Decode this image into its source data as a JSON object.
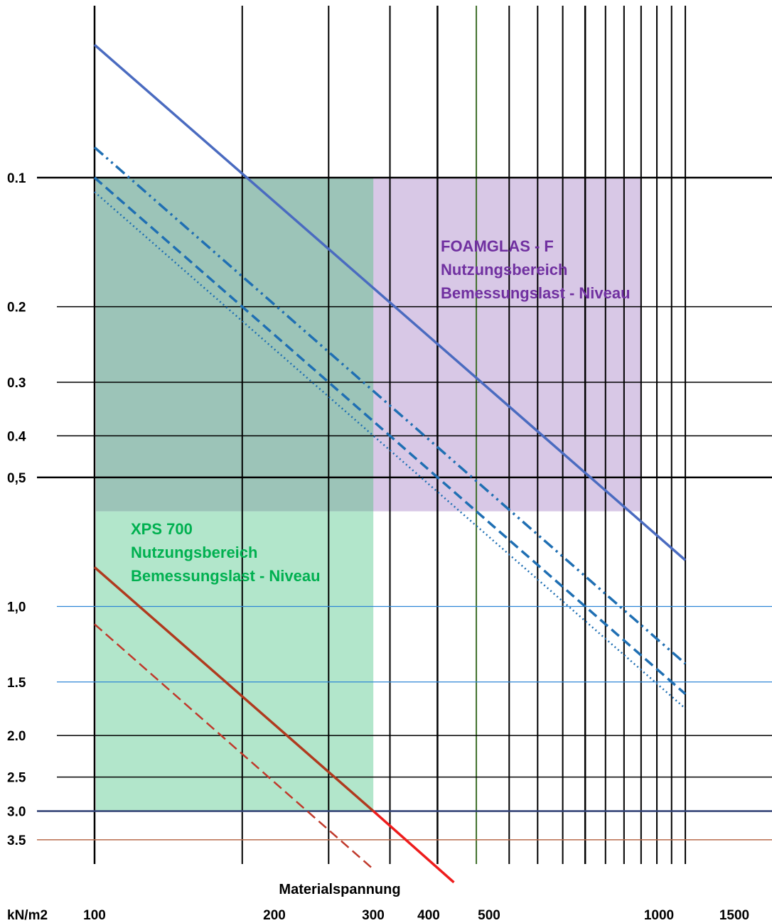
{
  "chart_data": {
    "type": "line",
    "xlabel": "Materialspannung",
    "x_unit": "kN/m2",
    "x_scale": "log",
    "xlim": [
      100,
      1600
    ],
    "x_tick_labels": [
      "100",
      "200",
      "300",
      "400",
      "500",
      "1000",
      "1500"
    ],
    "x_tick_values": [
      100,
      200,
      300,
      400,
      500,
      1000,
      1500
    ],
    "x_minor_values": [
      600,
      700,
      800,
      900,
      1100,
      1200,
      1300,
      1400
    ],
    "y_scale": "log",
    "y_inverted": true,
    "y_tick_labels": [
      "0.1",
      "0.2",
      "0.3",
      "0.4",
      "0,5",
      "1,0",
      "1.5",
      "2.0",
      "2.5",
      "3.0",
      "3.5"
    ],
    "y_tick_values": [
      0.1,
      0.2,
      0.3,
      0.4,
      0.5,
      1.0,
      1.5,
      2.0,
      2.5,
      3.0,
      3.5
    ],
    "grid": true,
    "regions": [
      {
        "label_lines": [
          "FOAMGLAS - F",
          "Nutzungsbereich",
          "Bemessungslast - Niveau"
        ],
        "x_range": [
          100,
          1300
        ],
        "y_range": [
          0.1,
          0.6
        ],
        "color": "#d8c8e6",
        "label_color": "#7030a0"
      },
      {
        "label_lines": [
          "XPS 700",
          "Nutzungsbereich",
          "Bemessungslast - Niveau"
        ],
        "x_range": [
          100,
          370
        ],
        "y_range": [
          0.6,
          3.0
        ],
        "color": "#b2e6cb",
        "label_color": "#00b050"
      }
    ],
    "series": [
      {
        "style": "solid",
        "color": "#4a6bc0",
        "points": [
          [
            100,
            0.049
          ],
          [
            1600,
            0.78
          ]
        ]
      },
      {
        "style": "dash-dot",
        "color": "#1f6fb3",
        "points": [
          [
            100,
            0.085
          ],
          [
            1600,
            1.36
          ]
        ]
      },
      {
        "style": "dashed",
        "color": "#1f6fb3",
        "points": [
          [
            100,
            0.1
          ],
          [
            1600,
            1.6
          ]
        ]
      },
      {
        "style": "dotted",
        "color": "#1f6fb3",
        "points": [
          [
            100,
            0.108
          ],
          [
            1600,
            1.73
          ]
        ]
      },
      {
        "style": "solid",
        "color": "#b03a1e",
        "points": [
          [
            100,
            0.81
          ],
          [
            370,
            3.0
          ]
        ]
      },
      {
        "style": "solid",
        "color": "#ee1c1c",
        "points": [
          [
            370,
            3.0
          ],
          [
            540,
            4.4
          ]
        ]
      },
      {
        "style": "dashed",
        "color": "#c0392b",
        "points": [
          [
            100,
            1.1
          ],
          [
            370,
            4.1
          ]
        ]
      }
    ],
    "colors": {
      "black_grid": "#000000",
      "blue_grid": "#2e86d6",
      "navy_grid": "#2f3f73",
      "brown_grid": "#b86a4a",
      "green_grid": "#3f6f2a"
    }
  }
}
